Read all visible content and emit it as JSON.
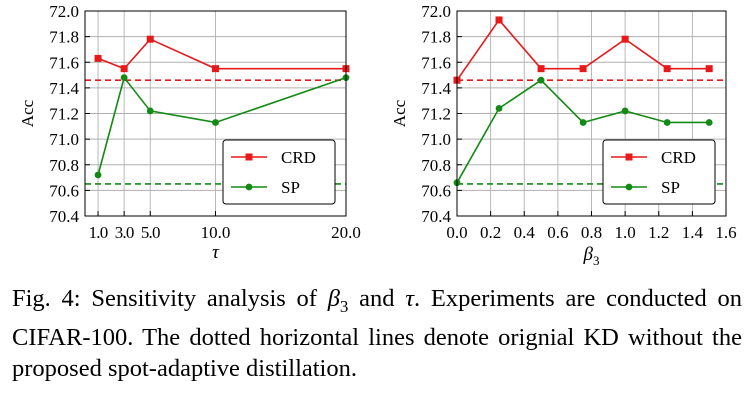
{
  "chart_data": [
    {
      "type": "line",
      "xlabel": "τ",
      "ylabel": "Acc",
      "categories": [
        "1.0",
        "3.0",
        "5.0",
        "10.0",
        "20.0"
      ],
      "x": [
        1.0,
        3.0,
        5.0,
        10.0,
        20.0
      ],
      "xlim": [
        0.0,
        20.0
      ],
      "xticks": [
        1.0,
        3.0,
        5.0,
        10.0,
        20.0
      ],
      "xtick_labels": [
        "1.0",
        "3.0",
        "5.0",
        "10.0",
        "20.0"
      ],
      "ylim": [
        70.4,
        72.0
      ],
      "yticks": [
        70.4,
        70.6,
        70.8,
        71.0,
        71.2,
        71.4,
        71.6,
        71.8,
        72.0
      ],
      "ytick_labels": [
        "70.4",
        "70.6",
        "70.8",
        "71.0",
        "71.2",
        "71.4",
        "71.6",
        "71.8",
        "72.0"
      ],
      "grid": true,
      "legend": "lower-right",
      "series": [
        {
          "name": "CRD",
          "color": "#e8191b",
          "marker": "square",
          "values": [
            71.63,
            71.55,
            71.78,
            71.55,
            71.55
          ],
          "baseline": 71.46
        },
        {
          "name": "SP",
          "color": "#138a13",
          "marker": "circle",
          "values": [
            70.72,
            71.48,
            71.22,
            71.13,
            71.48
          ],
          "baseline": 70.65
        }
      ]
    },
    {
      "type": "line",
      "xlabel": "β3",
      "ylabel": "Acc",
      "x": [
        0.0,
        0.25,
        0.5,
        0.75,
        1.0,
        1.25,
        1.5
      ],
      "xlim": [
        0.0,
        1.6
      ],
      "xticks": [
        0.0,
        0.2,
        0.4,
        0.6,
        0.8,
        1.0,
        1.2,
        1.4,
        1.6
      ],
      "xtick_labels": [
        "0.0",
        "0.2",
        "0.4",
        "0.6",
        "0.8",
        "1.0",
        "1.2",
        "1.4",
        "1.6"
      ],
      "ylim": [
        70.4,
        72.0
      ],
      "yticks": [
        70.4,
        70.6,
        70.8,
        71.0,
        71.2,
        71.4,
        71.6,
        71.8,
        72.0
      ],
      "ytick_labels": [
        "70.4",
        "70.6",
        "70.8",
        "71.0",
        "71.2",
        "71.4",
        "71.6",
        "71.8",
        "72.0"
      ],
      "grid": true,
      "legend": "lower-right",
      "series": [
        {
          "name": "CRD",
          "color": "#e8191b",
          "marker": "square",
          "values": [
            71.46,
            71.93,
            71.55,
            71.55,
            71.78,
            71.55,
            71.55
          ],
          "baseline": 71.46
        },
        {
          "name": "SP",
          "color": "#138a13",
          "marker": "circle",
          "values": [
            70.66,
            71.24,
            71.46,
            71.13,
            71.22,
            71.13,
            71.13
          ],
          "baseline": 70.65
        }
      ]
    }
  ],
  "caption": {
    "prefix": "Fig. 4: Sensitivity analysis of ",
    "sym1_base": "β",
    "sym1_sub": "3",
    "and": " and ",
    "sym2": "τ",
    "suffix": ". Experiments are conducted on CIFAR-100. The dotted horizontal lines denote orignial KD without the proposed spot-adaptive distillation."
  }
}
